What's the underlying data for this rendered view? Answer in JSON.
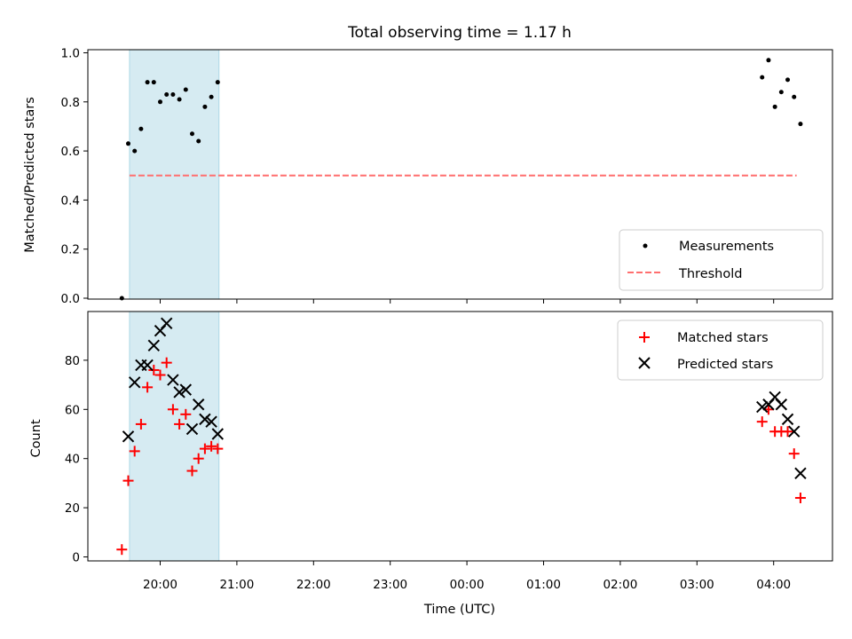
{
  "chart_data": [
    {
      "type": "scatter",
      "title": "Total observing time = 1.17 h",
      "ylabel": "Matched/Predicted stars",
      "xlabel": "",
      "ylim": [
        0,
        1.0
      ],
      "yticks": [
        "0.0",
        "0.2",
        "0.4",
        "0.6",
        "0.8",
        "1.0"
      ],
      "shaded_interval": [
        "19:36",
        "20:46"
      ],
      "shade_color": "#add8e6",
      "threshold": {
        "name": "Threshold",
        "value": 0.5,
        "x_range": [
          "19:36",
          "04:18"
        ],
        "color": "#ff6f6f"
      },
      "series": [
        {
          "name": "Measurements",
          "marker": "dot",
          "color": "#000000",
          "points": [
            [
              "19:30",
              0.0
            ],
            [
              "19:35",
              0.63
            ],
            [
              "19:40",
              0.6
            ],
            [
              "19:45",
              0.69
            ],
            [
              "19:50",
              0.88
            ],
            [
              "19:55",
              0.88
            ],
            [
              "20:00",
              0.8
            ],
            [
              "20:05",
              0.83
            ],
            [
              "20:10",
              0.83
            ],
            [
              "20:15",
              0.81
            ],
            [
              "20:20",
              0.85
            ],
            [
              "20:25",
              0.67
            ],
            [
              "20:30",
              0.64
            ],
            [
              "20:35",
              0.78
            ],
            [
              "20:40",
              0.82
            ],
            [
              "20:45",
              0.88
            ],
            [
              "03:51",
              0.9
            ],
            [
              "03:56",
              0.97
            ],
            [
              "04:01",
              0.78
            ],
            [
              "04:06",
              0.84
            ],
            [
              "04:11",
              0.89
            ],
            [
              "04:16",
              0.82
            ],
            [
              "04:21",
              0.71
            ]
          ]
        }
      ],
      "legend": "bottom-right"
    },
    {
      "type": "scatter",
      "title": "",
      "xlabel": "Time (UTC)",
      "ylabel": "Count",
      "ylim": [
        0,
        98
      ],
      "yticks": [
        "0",
        "20",
        "40",
        "60",
        "80"
      ],
      "xticks": [
        "20:00",
        "21:00",
        "22:00",
        "23:00",
        "00:00",
        "01:00",
        "02:00",
        "03:00",
        "04:00"
      ],
      "shaded_interval": [
        "19:36",
        "20:46"
      ],
      "series": [
        {
          "name": "Matched stars",
          "marker": "plus",
          "color": "#ff0000",
          "points": [
            [
              "19:30",
              3
            ],
            [
              "19:35",
              31
            ],
            [
              "19:40",
              43
            ],
            [
              "19:45",
              54
            ],
            [
              "19:50",
              69
            ],
            [
              "19:55",
              76
            ],
            [
              "20:00",
              74
            ],
            [
              "20:05",
              79
            ],
            [
              "20:10",
              60
            ],
            [
              "20:15",
              54
            ],
            [
              "20:20",
              58
            ],
            [
              "20:25",
              35
            ],
            [
              "20:30",
              40
            ],
            [
              "20:35",
              44
            ],
            [
              "20:40",
              45
            ],
            [
              "20:45",
              44
            ],
            [
              "03:51",
              55
            ],
            [
              "03:56",
              60
            ],
            [
              "04:01",
              51
            ],
            [
              "04:06",
              51
            ],
            [
              "04:11",
              51
            ],
            [
              "04:16",
              42
            ],
            [
              "04:21",
              24
            ]
          ]
        },
        {
          "name": "Predicted stars",
          "marker": "x",
          "color": "#000000",
          "points": [
            [
              "19:35",
              49
            ],
            [
              "19:40",
              71
            ],
            [
              "19:45",
              78
            ],
            [
              "19:50",
              78
            ],
            [
              "19:55",
              86
            ],
            [
              "20:00",
              92
            ],
            [
              "20:05",
              95
            ],
            [
              "20:10",
              72
            ],
            [
              "20:15",
              67
            ],
            [
              "20:20",
              68
            ],
            [
              "20:25",
              52
            ],
            [
              "20:30",
              62
            ],
            [
              "20:35",
              56
            ],
            [
              "20:40",
              55
            ],
            [
              "20:45",
              50
            ],
            [
              "03:51",
              61
            ],
            [
              "03:56",
              62
            ],
            [
              "04:01",
              65
            ],
            [
              "04:06",
              62
            ],
            [
              "04:11",
              56
            ],
            [
              "04:16",
              51
            ],
            [
              "04:21",
              34
            ]
          ]
        }
      ],
      "legend": "top-right"
    }
  ]
}
